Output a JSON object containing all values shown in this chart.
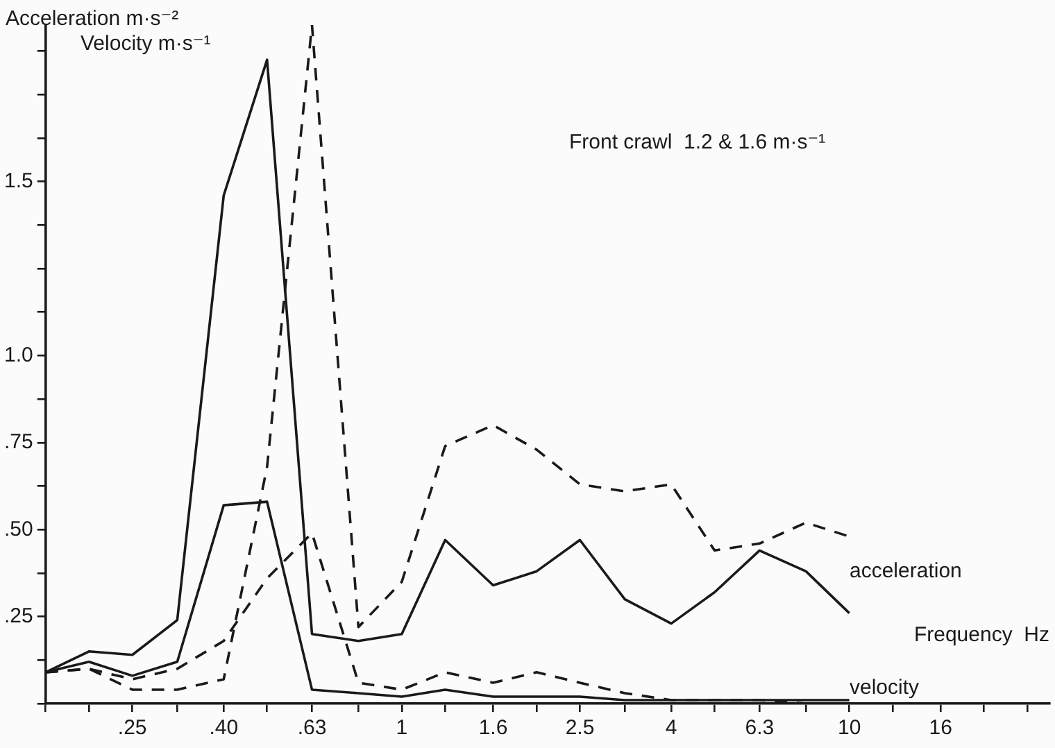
{
  "chart_data": {
    "type": "line",
    "title": "Front crawl  1.2 & 1.6 m·s⁻¹",
    "ylabel": "Acceleration m·s⁻²",
    "xlabel": "Frequency  Hz",
    "annotations": [
      "Velocity m·s⁻¹",
      "acceleration",
      "velocity"
    ],
    "x": [
      0.16,
      0.2,
      0.25,
      0.315,
      0.4,
      0.5,
      0.63,
      0.8,
      1,
      1.25,
      1.6,
      2,
      2.5,
      3.15,
      4,
      5,
      6.3,
      8,
      10
    ],
    "series": [
      {
        "color": "#1a1a1a",
        "line_style": "solid",
        "values": [
          0.09,
          0.15,
          0.14,
          0.24,
          1.46,
          1.85,
          0.2,
          0.18,
          0.2,
          0.47,
          0.34,
          0.38,
          0.47,
          0.3,
          0.23,
          0.32,
          0.44,
          0.38,
          0.26
        ]
      },
      {
        "color": "#1a1a1a",
        "line_style": "dashed",
        "values": [
          0.09,
          0.1,
          0.04,
          0.04,
          0.07,
          0.68,
          1.95,
          0.22,
          0.35,
          0.74,
          0.8,
          0.73,
          0.63,
          0.61,
          0.63,
          0.44,
          0.46,
          0.52,
          0.48
        ]
      },
      {
        "color": "#1a1a1a",
        "line_style": "solid",
        "values": [
          0.09,
          0.12,
          0.08,
          0.12,
          0.57,
          0.58,
          0.04,
          0.03,
          0.02,
          0.04,
          0.02,
          0.02,
          0.02,
          0.01,
          0.01,
          0.01,
          0.01,
          0.01,
          0.01
        ]
      },
      {
        "color": "#1a1a1a",
        "line_style": "dashed",
        "values": [
          0.09,
          0.1,
          0.07,
          0.1,
          0.18,
          0.36,
          0.49,
          0.06,
          0.04,
          0.09,
          0.06,
          0.09,
          0.06,
          0.03,
          0.01,
          0.01,
          0.01,
          0,
          0
        ]
      }
    ],
    "xlim": [
      0.16,
      28
    ],
    "log": "x",
    "xticks": [
      {
        "value": 0.16,
        "label": null
      },
      {
        "value": 0.2,
        "label": null
      },
      {
        "value": 0.25,
        "label": ".25"
      },
      {
        "value": 0.315,
        "label": null
      },
      {
        "value": 0.4,
        "label": ".40"
      },
      {
        "value": 0.5,
        "label": null
      },
      {
        "value": 0.63,
        "label": ".63"
      },
      {
        "value": 0.8,
        "label": null
      },
      1,
      {
        "value": 1.25,
        "label": null
      },
      1.6,
      {
        "value": 2,
        "label": null
      },
      2.5,
      {
        "value": 3.15,
        "label": null
      },
      4,
      {
        "value": 5,
        "label": null
      },
      6.3,
      {
        "value": 8,
        "label": null
      },
      10,
      {
        "value": 12.5,
        "label": null
      },
      16,
      {
        "value": 20,
        "label": null
      },
      {
        "value": 25,
        "label": null
      }
    ],
    "ylim": [
      0,
      1.95
    ],
    "yticks": [
      {
        "value": 0,
        "label": null
      },
      {
        "value": 0.125,
        "label": null
      },
      {
        "value": 0.25,
        "label": ".25"
      },
      {
        "value": 0.375,
        "label": null
      },
      {
        "value": 0.5,
        "label": ".50"
      },
      {
        "value": 0.625,
        "label": null
      },
      {
        "value": 0.75,
        "label": ".75"
      },
      {
        "value": 0.875,
        "label": null
      },
      {
        "value": 1,
        "label": "1.0"
      },
      {
        "value": 1.125,
        "label": null
      },
      {
        "value": 1.25,
        "label": null
      },
      {
        "value": 1.375,
        "label": null
      },
      {
        "value": 1.5,
        "label": "1.5"
      },
      {
        "value": 1.625,
        "label": null
      },
      {
        "value": 1.75,
        "label": null
      },
      {
        "value": 1.875,
        "label": null
      }
    ],
    "grid": false,
    "legend": false,
    "marker": "none"
  }
}
